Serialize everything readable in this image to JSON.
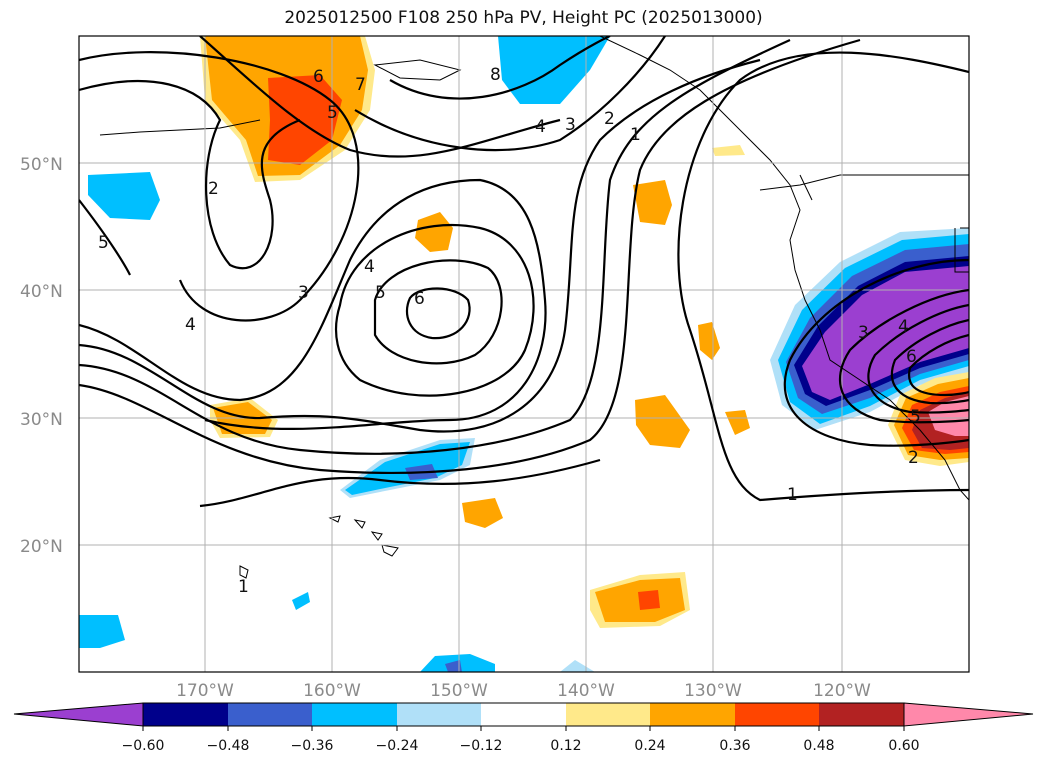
{
  "title": "2025012500 F108 250 hPa PV, Height PC (2025013000)",
  "map": {
    "lat_labels": [
      "50°N",
      "40°N",
      "30°N",
      "20°N"
    ],
    "lon_labels": [
      "170°W",
      "160°W",
      "150°W",
      "140°W",
      "130°W",
      "120°W"
    ],
    "gridlines": true
  },
  "colorbar": {
    "colors": [
      "#9b3fd0",
      "#00008b",
      "#3a5fcd",
      "#00bfff",
      "#b0e0f8",
      "#ffffff",
      "#ffe98a",
      "#ffa500",
      "#ff4500",
      "#b22222",
      "#ff88aa"
    ],
    "tick_labels": [
      "−0.60",
      "−0.48",
      "−0.36",
      "−0.24",
      "−0.12",
      "0.12",
      "0.24",
      "0.36",
      "0.48",
      "0.60"
    ],
    "extend": "both"
  },
  "contour_labels": [
    "6",
    "5",
    "7",
    "8",
    "4",
    "3",
    "2",
    "1",
    "2",
    "5",
    "4",
    "3",
    "4",
    "5",
    "6",
    "1",
    "1",
    "3",
    "4",
    "6",
    "5",
    "2"
  ]
}
